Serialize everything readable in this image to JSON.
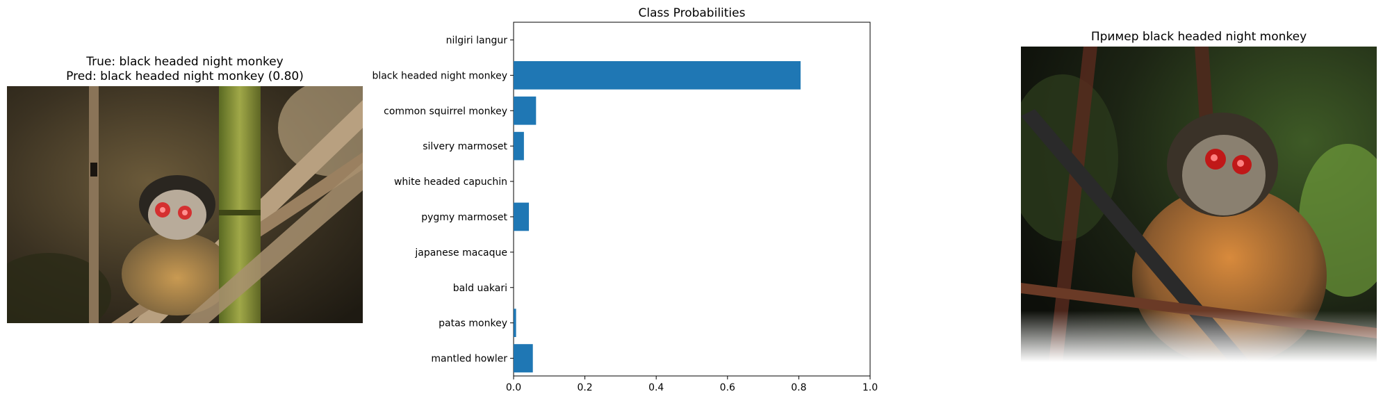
{
  "left_panel": {
    "title_line1": "True: black headed night monkey",
    "title_line2": "Pred: black headed night monkey (0.80)"
  },
  "right_panel": {
    "title": "Пример black headed night monkey"
  },
  "chart_data": {
    "type": "bar",
    "orientation": "horizontal",
    "title": "Class Probabilities",
    "xlabel": "",
    "ylabel": "",
    "xlim": [
      0,
      1.0
    ],
    "x_ticks": [
      0.0,
      0.2,
      0.4,
      0.6,
      0.8,
      1.0
    ],
    "x_tick_labels": [
      "0.0",
      "0.2",
      "0.4",
      "0.6",
      "0.8",
      "1.0"
    ],
    "grid": false,
    "bar_color": "#1f77b4",
    "categories": [
      "nilgiri langur",
      "black headed night monkey",
      "common squirrel monkey",
      "silvery marmoset",
      "white headed capuchin",
      "pygmy marmoset",
      "japanese macaque",
      "bald uakari",
      "patas monkey",
      "mantled howler"
    ],
    "values": [
      0.0,
      0.805,
      0.063,
      0.029,
      0.0,
      0.043,
      0.0,
      0.0,
      0.007,
      0.054
    ]
  }
}
